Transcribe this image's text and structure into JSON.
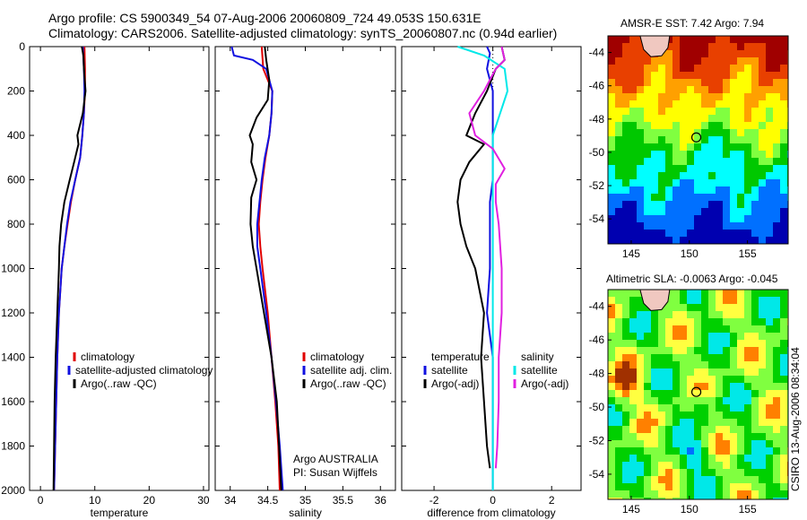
{
  "header": {
    "title_line1": "Argo profile: CS 5900349_54 07-Aug-2006 20060809_724 49.053S 150.631E",
    "title_line2": "Climatology: CARS2006. Satellite-adjusted climatology: synTS_20060807.nc (0.94d earlier)"
  },
  "chart_data": [
    {
      "type": "line",
      "xlabel": "temperature",
      "xlim": [
        -2,
        31
      ],
      "ylim": [
        2000,
        0
      ],
      "xticks": [
        "0",
        "10",
        "20",
        "30"
      ],
      "yticks": [
        "0",
        "200",
        "400",
        "600",
        "800",
        "1000",
        "1200",
        "1400",
        "1600",
        "1800",
        "2000"
      ],
      "legend": {
        "placement": "lower-center",
        "entries": [
          "climatology",
          "satellite-adjusted climatology",
          "Argo(..raw -QC)"
        ]
      },
      "series": [
        {
          "name": "climatology",
          "color": "#e00000",
          "points": [
            [
              8.1,
              0
            ],
            [
              8.2,
              100
            ],
            [
              8.2,
              200
            ],
            [
              8.0,
              300
            ],
            [
              7.7,
              400
            ],
            [
              7.3,
              500
            ],
            [
              6.4,
              600
            ],
            [
              5.6,
              700
            ],
            [
              5.0,
              800
            ],
            [
              4.4,
              900
            ],
            [
              3.9,
              1000
            ],
            [
              3.4,
              1200
            ],
            [
              3.1,
              1400
            ],
            [
              2.9,
              1600
            ],
            [
              2.7,
              1800
            ],
            [
              2.5,
              2000
            ]
          ]
        },
        {
          "name": "satellite-adjusted climatology",
          "color": "#1010e0",
          "points": [
            [
              7.8,
              0
            ],
            [
              8.0,
              100
            ],
            [
              8.1,
              200
            ],
            [
              8.0,
              300
            ],
            [
              7.7,
              400
            ],
            [
              7.3,
              500
            ],
            [
              6.4,
              600
            ],
            [
              5.5,
              700
            ],
            [
              4.9,
              800
            ],
            [
              4.4,
              900
            ],
            [
              3.9,
              1000
            ],
            [
              3.4,
              1200
            ],
            [
              3.1,
              1400
            ],
            [
              2.9,
              1600
            ],
            [
              2.7,
              1800
            ],
            [
              2.5,
              2000
            ]
          ]
        },
        {
          "name": "Argo(..raw -QC)",
          "color": "#000000",
          "points": [
            [
              7.6,
              0
            ],
            [
              7.9,
              40
            ],
            [
              8.0,
              100
            ],
            [
              8.3,
              200
            ],
            [
              7.8,
              300
            ],
            [
              6.8,
              400
            ],
            [
              7.0,
              440
            ],
            [
              6.2,
              520
            ],
            [
              5.4,
              600
            ],
            [
              4.4,
              700
            ],
            [
              3.8,
              800
            ],
            [
              3.5,
              900
            ],
            [
              3.4,
              1000
            ],
            [
              3.1,
              1200
            ],
            [
              2.8,
              1400
            ],
            [
              2.6,
              1600
            ],
            [
              2.5,
              1800
            ],
            [
              2.4,
              2000
            ]
          ]
        }
      ]
    },
    {
      "type": "line",
      "xlabel": "salinity",
      "xlim": [
        33.8,
        36.2
      ],
      "ylim": [
        2000,
        0
      ],
      "xticks": [
        "34",
        "34.5",
        "35",
        "35.5",
        "36"
      ],
      "legend": {
        "placement": "lower-right",
        "entries": [
          "climatology",
          "satellite adj. clim.",
          "Argo(..raw -QC)"
        ]
      },
      "annotation": [
        "Argo AUSTRALIA",
        "PI: Susan Wijffels"
      ],
      "series": [
        {
          "name": "climatology",
          "color": "#e00000",
          "points": [
            [
              34.42,
              0
            ],
            [
              34.44,
              100
            ],
            [
              34.56,
              200
            ],
            [
              34.55,
              300
            ],
            [
              34.52,
              400
            ],
            [
              34.47,
              500
            ],
            [
              34.43,
              600
            ],
            [
              34.4,
              700
            ],
            [
              34.38,
              800
            ],
            [
              34.4,
              900
            ],
            [
              34.43,
              1000
            ],
            [
              34.5,
              1200
            ],
            [
              34.55,
              1400
            ],
            [
              34.6,
              1600
            ],
            [
              34.64,
              1800
            ],
            [
              34.66,
              2000
            ]
          ]
        },
        {
          "name": "satellite adj. clim.",
          "color": "#1010e0",
          "points": [
            [
              34.02,
              0
            ],
            [
              34.05,
              40
            ],
            [
              34.3,
              60
            ],
            [
              34.48,
              100
            ],
            [
              34.56,
              200
            ],
            [
              34.55,
              300
            ],
            [
              34.52,
              400
            ],
            [
              34.46,
              500
            ],
            [
              34.42,
              600
            ],
            [
              34.39,
              700
            ],
            [
              34.36,
              800
            ],
            [
              34.36,
              900
            ],
            [
              34.4,
              1000
            ],
            [
              34.48,
              1200
            ],
            [
              34.55,
              1400
            ],
            [
              34.61,
              1600
            ],
            [
              34.66,
              1800
            ],
            [
              34.7,
              2000
            ]
          ]
        },
        {
          "name": "Argo(..raw -QC)",
          "color": "#000000",
          "points": [
            [
              34.46,
              0
            ],
            [
              34.48,
              60
            ],
            [
              34.52,
              150
            ],
            [
              34.5,
              240
            ],
            [
              34.35,
              320
            ],
            [
              34.26,
              400
            ],
            [
              34.3,
              440
            ],
            [
              34.28,
              520
            ],
            [
              34.35,
              600
            ],
            [
              34.28,
              680
            ],
            [
              34.27,
              800
            ],
            [
              34.3,
              900
            ],
            [
              34.35,
              1000
            ],
            [
              34.45,
              1200
            ],
            [
              34.55,
              1400
            ],
            [
              34.62,
              1600
            ],
            [
              34.65,
              1800
            ],
            [
              34.68,
              2000
            ]
          ]
        }
      ]
    },
    {
      "type": "line",
      "xlabel": "difference from climatology",
      "xlim": [
        -3.1,
        3.0
      ],
      "ylim": [
        2000,
        0
      ],
      "xticks": [
        "-2",
        "0",
        "2"
      ],
      "legend": {
        "placement": "lower-center",
        "left_heading": "temperature",
        "right_heading": "salinity",
        "entries": [
          "satellite",
          "Argo(-adj)",
          "satellite",
          "Argo(-adj)"
        ]
      },
      "series": [
        {
          "name": "temperature satellite",
          "color": "#1010e0",
          "points": [
            [
              -0.2,
              0
            ],
            [
              -0.1,
              30
            ],
            [
              -0.2,
              100
            ],
            [
              0,
              200
            ],
            [
              0,
              400
            ],
            [
              0,
              500
            ],
            [
              0,
              600
            ],
            [
              -0.1,
              700
            ],
            [
              -0.1,
              800
            ],
            [
              -0.1,
              900
            ],
            [
              -0.1,
              1000
            ],
            [
              -0.2,
              1200
            ],
            [
              0,
              1400
            ],
            [
              0,
              1600
            ],
            [
              0,
              1800
            ],
            [
              0,
              2000
            ]
          ]
        },
        {
          "name": "temperature Argo(-adj)",
          "color": "#000000",
          "points": [
            [
              0.3,
              0
            ],
            [
              0.4,
              60
            ],
            [
              0.1,
              100
            ],
            [
              -0.2,
              200
            ],
            [
              -0.6,
              300
            ],
            [
              -0.9,
              400
            ],
            [
              -0.3,
              440
            ],
            [
              -0.8,
              520
            ],
            [
              -1.1,
              600
            ],
            [
              -1.2,
              700
            ],
            [
              -1.1,
              800
            ],
            [
              -0.9,
              900
            ],
            [
              -0.6,
              1000
            ],
            [
              -0.3,
              1200
            ],
            [
              -0.4,
              1400
            ],
            [
              -0.3,
              1600
            ],
            [
              -0.2,
              1800
            ],
            [
              -0.1,
              1900
            ]
          ]
        },
        {
          "name": "salinity satellite",
          "color": "#00e8e8",
          "points": [
            [
              -1.2,
              0
            ],
            [
              -0.3,
              40
            ],
            [
              0.4,
              100
            ],
            [
              0.5,
              200
            ],
            [
              0,
              400
            ],
            [
              0,
              600
            ],
            [
              0,
              800
            ],
            [
              0,
              1000
            ],
            [
              0,
              1200
            ],
            [
              0,
              1400
            ],
            [
              0,
              1600
            ],
            [
              0,
              1800
            ],
            [
              0,
              2000
            ]
          ]
        },
        {
          "name": "salinity Argo(-adj)",
          "color": "#e020e0",
          "points": [
            [
              0.3,
              0
            ],
            [
              0.4,
              60
            ],
            [
              0.1,
              100
            ],
            [
              -0.3,
              200
            ],
            [
              -0.8,
              300
            ],
            [
              -0.6,
              400
            ],
            [
              0,
              460
            ],
            [
              0.4,
              550
            ],
            [
              0.1,
              620
            ],
            [
              0.1,
              700
            ],
            [
              0.2,
              800
            ],
            [
              0.3,
              1000
            ],
            [
              0.3,
              1200
            ],
            [
              0.2,
              1400
            ],
            [
              0.2,
              1600
            ],
            [
              0.15,
              1800
            ],
            [
              0.1,
              1900
            ]
          ]
        }
      ]
    },
    {
      "type": "heatmap",
      "title": "AMSR-E SST: 7.42 Argo: 7.94",
      "xlim": [
        143,
        158.5
      ],
      "ylim": [
        -55.5,
        -43
      ],
      "xticks": [
        "145",
        "150",
        "155"
      ],
      "yticks": [
        "-44",
        "-46",
        "-48",
        "-50",
        "-52",
        "-54"
      ],
      "colors": [
        "#a00000",
        "#e84000",
        "#ffa000",
        "#ffff00",
        "#80ff40",
        "#00c800",
        "#00ffff",
        "#0070ff",
        "#0000b0"
      ],
      "argo_position": [
        150.6,
        -49.1
      ]
    },
    {
      "type": "heatmap",
      "title": "Altimetric SLA: -0.0063 Argo: -0.045",
      "xlim": [
        143,
        158.5
      ],
      "ylim": [
        -55.5,
        -43
      ],
      "xticks": [
        "145",
        "150",
        "155"
      ],
      "yticks": [
        "-44",
        "-46",
        "-48",
        "-50",
        "-52",
        "-54"
      ],
      "colors": [
        "#a03000",
        "#ff8000",
        "#ffff40",
        "#80ff40",
        "#00d000",
        "#00e8e8",
        "#0070ff"
      ],
      "argo_position": [
        150.6,
        -49.1
      ]
    }
  ],
  "footer": {
    "stamp": "CSIRO 13-Aug-2006 08:34:04"
  }
}
